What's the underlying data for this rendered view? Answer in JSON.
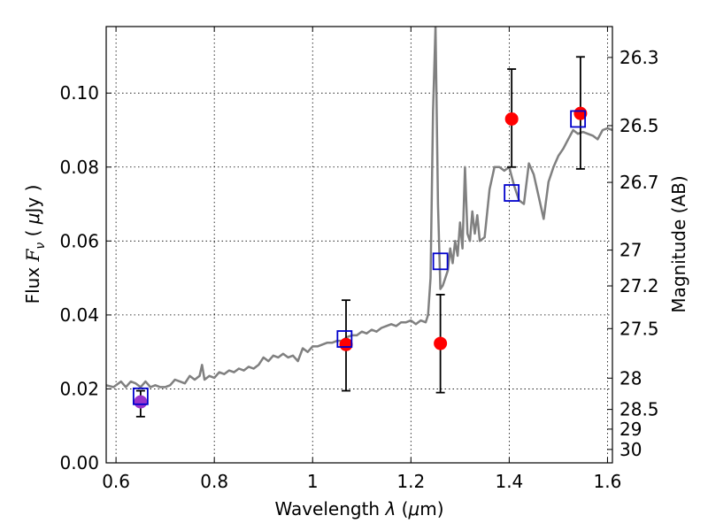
{
  "chart_data": {
    "type": "scatter",
    "title": "",
    "xlabel": {
      "pre": "Wavelength ",
      "sym": "λ",
      "post": " (",
      "mu": "μ",
      "unit": "m)"
    },
    "ylabel": {
      "pre": "Flux  ",
      "sym": "F",
      "sub": "ν",
      "post": "  ( ",
      "mu": "μ",
      "unit": "Jy )"
    },
    "y2label": "Magnitude (AB)",
    "xlim": [
      0.58,
      1.61
    ],
    "ylim": [
      0.0,
      0.118
    ],
    "grid": true,
    "xticks": [
      0.6,
      0.8,
      1.0,
      1.2,
      1.4,
      1.6
    ],
    "xtick_labels": [
      "0.6",
      "0.8",
      "1",
      "1.2",
      "1.4",
      "1.6"
    ],
    "yticks": [
      0.0,
      0.02,
      0.04,
      0.06,
      0.08,
      0.1
    ],
    "ytick_labels": [
      "0.00",
      "0.02",
      "0.04",
      "0.06",
      "0.08",
      "0.10"
    ],
    "y2ticks": [
      {
        "label": "26.3",
        "mag": 26.3
      },
      {
        "label": "26.5",
        "mag": 26.5
      },
      {
        "label": "26.7",
        "mag": 26.7
      },
      {
        "label": "27",
        "mag": 27.0
      },
      {
        "label": "27.2",
        "mag": 27.2
      },
      {
        "label": "27.5",
        "mag": 27.5
      },
      {
        "label": "28",
        "mag": 28.0
      },
      {
        "label": "28.5",
        "mag": 28.5
      },
      {
        "label": "29",
        "mag": 29.0
      },
      {
        "label": "30",
        "mag": 30.0
      }
    ],
    "series": [
      {
        "kind": "line",
        "color": "#808080",
        "points": [
          [
            0.58,
            0.021
          ],
          [
            0.595,
            0.0205
          ],
          [
            0.61,
            0.022
          ],
          [
            0.62,
            0.0205
          ],
          [
            0.63,
            0.022
          ],
          [
            0.64,
            0.0215
          ],
          [
            0.65,
            0.0205
          ],
          [
            0.66,
            0.022
          ],
          [
            0.67,
            0.0205
          ],
          [
            0.68,
            0.021
          ],
          [
            0.69,
            0.0205
          ],
          [
            0.7,
            0.0205
          ],
          [
            0.71,
            0.021
          ],
          [
            0.72,
            0.0225
          ],
          [
            0.73,
            0.022
          ],
          [
            0.74,
            0.0215
          ],
          [
            0.75,
            0.0235
          ],
          [
            0.76,
            0.0225
          ],
          [
            0.77,
            0.0235
          ],
          [
            0.775,
            0.0265
          ],
          [
            0.78,
            0.0225
          ],
          [
            0.79,
            0.0235
          ],
          [
            0.8,
            0.023
          ],
          [
            0.81,
            0.0245
          ],
          [
            0.82,
            0.024
          ],
          [
            0.83,
            0.025
          ],
          [
            0.84,
            0.0245
          ],
          [
            0.85,
            0.0255
          ],
          [
            0.86,
            0.025
          ],
          [
            0.87,
            0.026
          ],
          [
            0.88,
            0.0255
          ],
          [
            0.89,
            0.0265
          ],
          [
            0.9,
            0.0285
          ],
          [
            0.91,
            0.0275
          ],
          [
            0.92,
            0.029
          ],
          [
            0.93,
            0.0285
          ],
          [
            0.94,
            0.0295
          ],
          [
            0.95,
            0.0285
          ],
          [
            0.96,
            0.029
          ],
          [
            0.97,
            0.0275
          ],
          [
            0.98,
            0.031
          ],
          [
            0.99,
            0.03
          ],
          [
            1.0,
            0.0315
          ],
          [
            1.01,
            0.0315
          ],
          [
            1.02,
            0.032
          ],
          [
            1.03,
            0.0325
          ],
          [
            1.04,
            0.0325
          ],
          [
            1.05,
            0.033
          ],
          [
            1.06,
            0.033
          ],
          [
            1.07,
            0.034
          ],
          [
            1.08,
            0.0345
          ],
          [
            1.09,
            0.0345
          ],
          [
            1.1,
            0.0355
          ],
          [
            1.11,
            0.035
          ],
          [
            1.12,
            0.036
          ],
          [
            1.13,
            0.0355
          ],
          [
            1.14,
            0.0365
          ],
          [
            1.15,
            0.037
          ],
          [
            1.16,
            0.0375
          ],
          [
            1.17,
            0.037
          ],
          [
            1.18,
            0.038
          ],
          [
            1.19,
            0.038
          ],
          [
            1.2,
            0.0385
          ],
          [
            1.21,
            0.0375
          ],
          [
            1.22,
            0.0385
          ],
          [
            1.23,
            0.038
          ],
          [
            1.235,
            0.04
          ],
          [
            1.24,
            0.05
          ],
          [
            1.245,
            0.095
          ],
          [
            1.25,
            0.118
          ],
          [
            1.255,
            0.07
          ],
          [
            1.26,
            0.047
          ],
          [
            1.265,
            0.048
          ],
          [
            1.27,
            0.05
          ],
          [
            1.275,
            0.052
          ],
          [
            1.28,
            0.058
          ],
          [
            1.285,
            0.054
          ],
          [
            1.29,
            0.06
          ],
          [
            1.295,
            0.056
          ],
          [
            1.3,
            0.065
          ],
          [
            1.305,
            0.058
          ],
          [
            1.31,
            0.08
          ],
          [
            1.315,
            0.062
          ],
          [
            1.32,
            0.06
          ],
          [
            1.325,
            0.068
          ],
          [
            1.33,
            0.062
          ],
          [
            1.335,
            0.067
          ],
          [
            1.34,
            0.06
          ],
          [
            1.35,
            0.061
          ],
          [
            1.36,
            0.074
          ],
          [
            1.37,
            0.08
          ],
          [
            1.38,
            0.08
          ],
          [
            1.39,
            0.079
          ],
          [
            1.4,
            0.08
          ],
          [
            1.41,
            0.075
          ],
          [
            1.42,
            0.071
          ],
          [
            1.43,
            0.07
          ],
          [
            1.44,
            0.081
          ],
          [
            1.45,
            0.078
          ],
          [
            1.46,
            0.072
          ],
          [
            1.47,
            0.066
          ],
          [
            1.48,
            0.076
          ],
          [
            1.49,
            0.08
          ],
          [
            1.5,
            0.083
          ],
          [
            1.51,
            0.085
          ],
          [
            1.52,
            0.0875
          ],
          [
            1.53,
            0.09
          ],
          [
            1.54,
            0.089
          ],
          [
            1.55,
            0.0895
          ],
          [
            1.56,
            0.089
          ],
          [
            1.57,
            0.0885
          ],
          [
            1.58,
            0.0875
          ],
          [
            1.59,
            0.09
          ],
          [
            1.6,
            0.0905
          ],
          [
            1.61,
            0.09
          ]
        ]
      },
      {
        "kind": "squares",
        "color": "#0000cc",
        "points": [
          [
            0.65,
            0.018
          ],
          [
            1.065,
            0.0335
          ],
          [
            1.26,
            0.0545
          ],
          [
            1.405,
            0.073
          ],
          [
            1.54,
            0.093
          ]
        ]
      },
      {
        "kind": "errorbar",
        "color": "#ff0000",
        "err_color": "#000000",
        "points": [
          {
            "x": 0.65,
            "y": 0.0165,
            "lo": 0.0125,
            "hi": 0.0195,
            "color": "#9933cc"
          },
          {
            "x": 1.068,
            "y": 0.032,
            "lo": 0.0195,
            "hi": 0.044
          },
          {
            "x": 1.26,
            "y": 0.0323,
            "lo": 0.019,
            "hi": 0.0455
          },
          {
            "x": 1.405,
            "y": 0.093,
            "lo": 0.08,
            "hi": 0.1065
          },
          {
            "x": 1.545,
            "y": 0.0945,
            "lo": 0.0795,
            "hi": 0.1098
          }
        ]
      }
    ]
  }
}
